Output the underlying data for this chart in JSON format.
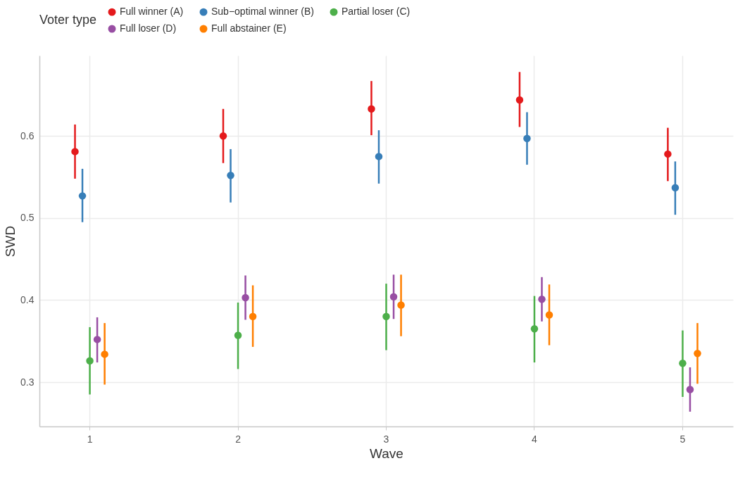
{
  "chart_data": {
    "type": "scatter",
    "xlabel": "Wave",
    "ylabel": "SWD",
    "legend_title": "Voter type",
    "categories": [
      "1",
      "2",
      "3",
      "4",
      "5"
    ],
    "ylim": [
      0.246,
      0.698
    ],
    "yticks": [
      0.3,
      0.4,
      0.5,
      0.6
    ],
    "grid": true,
    "legend": "top",
    "marker": "circle",
    "series": [
      {
        "name": "Full winner (A)",
        "color": "#e41a1c",
        "values": [
          0.581,
          0.6,
          0.633,
          0.644,
          0.578
        ],
        "errors": [
          [
            0.548,
            0.614
          ],
          [
            0.567,
            0.633
          ],
          [
            0.601,
            0.667
          ],
          [
            0.611,
            0.678
          ],
          [
            0.545,
            0.61
          ]
        ]
      },
      {
        "name": "Sub−optimal winner (B)",
        "color": "#377eb8",
        "values": [
          0.527,
          0.552,
          0.575,
          0.597,
          0.537
        ],
        "errors": [
          [
            0.495,
            0.56
          ],
          [
            0.519,
            0.584
          ],
          [
            0.542,
            0.607
          ],
          [
            0.565,
            0.629
          ],
          [
            0.504,
            0.569
          ]
        ]
      },
      {
        "name": "Partial loser (C)",
        "color": "#4daf4a",
        "values": [
          0.326,
          0.357,
          0.38,
          0.365,
          0.323
        ],
        "errors": [
          [
            0.285,
            0.367
          ],
          [
            0.316,
            0.397
          ],
          [
            0.339,
            0.42
          ],
          [
            0.324,
            0.405
          ],
          [
            0.282,
            0.363
          ]
        ]
      },
      {
        "name": "Full loser (D)",
        "color": "#984ea3",
        "values": [
          0.352,
          0.403,
          0.404,
          0.401,
          0.291
        ],
        "errors": [
          [
            0.324,
            0.379
          ],
          [
            0.376,
            0.43
          ],
          [
            0.377,
            0.431
          ],
          [
            0.374,
            0.428
          ],
          [
            0.264,
            0.318
          ]
        ]
      },
      {
        "name": "Full abstainer (E)",
        "color": "#ff7f00",
        "values": [
          0.334,
          0.38,
          0.394,
          0.382,
          0.335
        ],
        "errors": [
          [
            0.297,
            0.372
          ],
          [
            0.343,
            0.418
          ],
          [
            0.356,
            0.431
          ],
          [
            0.345,
            0.419
          ],
          [
            0.298,
            0.372
          ]
        ]
      }
    ]
  }
}
